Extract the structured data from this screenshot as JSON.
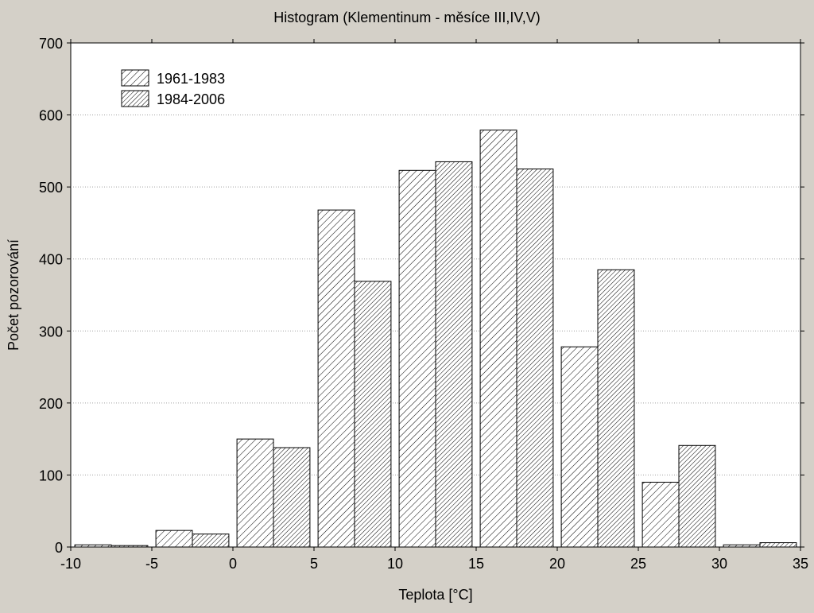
{
  "chart_data": {
    "type": "bar",
    "title": "Histogram (Klementinum - měsíce III,IV,V)",
    "xlabel": "Teplota [°C]",
    "ylabel": "Počet pozorování",
    "xlim": [
      -10,
      35
    ],
    "ylim": [
      0,
      700
    ],
    "x_ticks": [
      "-10",
      "-5",
      "0",
      "5",
      "10",
      "15",
      "20",
      "25",
      "30",
      "35"
    ],
    "y_ticks": [
      "0",
      "100",
      "200",
      "300",
      "400",
      "500",
      "600",
      "700"
    ],
    "bin_width": 5,
    "bin_starts": [
      -10,
      -5,
      0,
      5,
      10,
      15,
      20,
      25,
      30
    ],
    "series": [
      {
        "name": "1961-1983",
        "values": [
          3,
          23,
          150,
          468,
          523,
          579,
          278,
          90,
          3
        ]
      },
      {
        "name": "1984-2006",
        "values": [
          2,
          18,
          138,
          369,
          535,
          525,
          385,
          141,
          6
        ]
      }
    ],
    "grid": "horizontal-dotted",
    "legend_position": "top-left"
  },
  "colors": {
    "background": "#d4d0c8",
    "plot_background": "#ffffff",
    "bar_fill": "#ffffff",
    "hatch": "#000000",
    "grid": "#a0a0a0"
  }
}
